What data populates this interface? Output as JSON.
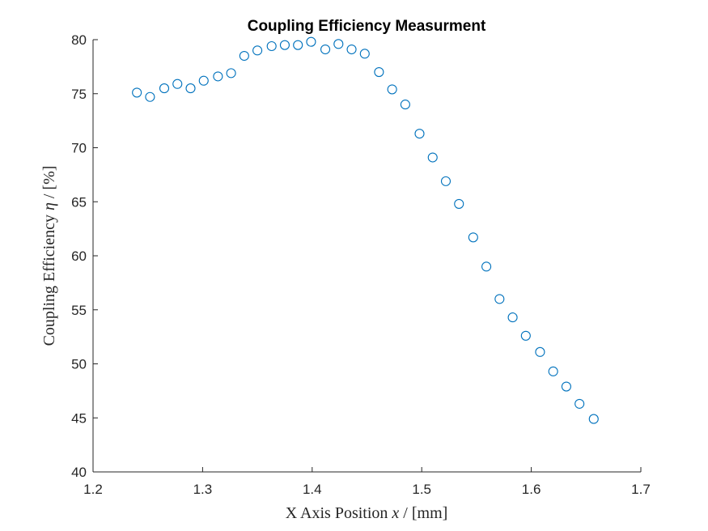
{
  "chart_data": {
    "type": "scatter",
    "title": "Coupling Efficiency Measurment",
    "xlabel": {
      "pre": "X Axis Position ",
      "var": "x",
      "post": " / [mm]"
    },
    "ylabel": {
      "pre": "Coupling Efficiency ",
      "var": "η",
      "post": " / [%]"
    },
    "xlim": [
      1.2,
      1.7
    ],
    "ylim": [
      40,
      80
    ],
    "xticks": [
      1.2,
      1.3,
      1.4,
      1.5,
      1.6,
      1.7
    ],
    "xtick_labels": [
      "1.2",
      "1.3",
      "1.4",
      "1.5",
      "1.6",
      "1.7"
    ],
    "yticks": [
      40,
      45,
      50,
      55,
      60,
      65,
      70,
      75,
      80
    ],
    "ytick_labels": [
      "40",
      "45",
      "50",
      "55",
      "60",
      "65",
      "70",
      "75",
      "80"
    ],
    "grid": false,
    "legend": "none",
    "marker_color": "#0072BD",
    "series": [
      {
        "x": [
          1.24,
          1.252,
          1.265,
          1.277,
          1.289,
          1.301,
          1.314,
          1.326,
          1.338,
          1.35,
          1.363,
          1.375,
          1.387,
          1.399,
          1.412,
          1.424,
          1.436,
          1.448,
          1.461,
          1.473,
          1.485,
          1.498,
          1.51,
          1.522,
          1.534,
          1.547,
          1.559,
          1.571,
          1.583,
          1.595,
          1.608,
          1.62,
          1.632,
          1.644,
          1.657
        ],
        "y": [
          75.1,
          74.7,
          75.5,
          75.9,
          75.5,
          76.2,
          76.6,
          76.9,
          78.5,
          79.0,
          79.4,
          79.5,
          79.5,
          79.8,
          79.1,
          79.6,
          79.1,
          78.7,
          77.0,
          75.4,
          74.0,
          71.3,
          69.1,
          66.9,
          64.8,
          61.7,
          59.0,
          56.0,
          54.3,
          52.6,
          51.1,
          49.3,
          47.9,
          46.3,
          44.9
        ]
      }
    ]
  }
}
